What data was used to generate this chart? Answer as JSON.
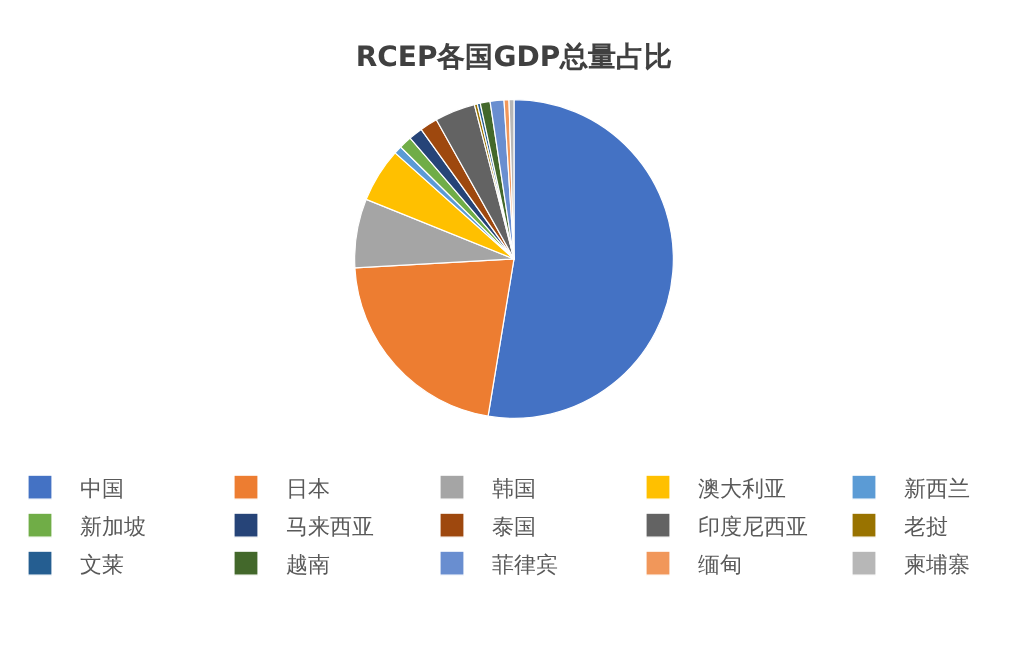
{
  "chart_data": {
    "type": "pie",
    "title": "RCEP各国GDP总量占比",
    "categories": [
      "中国",
      "日本",
      "韩国",
      "澳大利亚",
      "新西兰",
      "新加坡",
      "马来西亚",
      "泰国",
      "印度尼西亚",
      "老挝",
      "文莱",
      "越南",
      "菲律宾",
      "缅甸",
      "柬埔寨"
    ],
    "values": [
      52.6,
      21.5,
      7,
      5.5,
      0.8,
      1.3,
      1.4,
      1.8,
      4.1,
      0.3,
      0.3,
      1,
      1.4,
      0.5,
      0.5
    ],
    "colors": [
      "#4472c4",
      "#ed7d31",
      "#a5a5a5",
      "#ffc000",
      "#5b9bd5",
      "#70ad47",
      "#264478",
      "#9e480e",
      "#636363",
      "#997300",
      "#255e91",
      "#43682b",
      "#698ed0",
      "#f1975a",
      "#b7b7b7"
    ],
    "legend": "bottom"
  }
}
